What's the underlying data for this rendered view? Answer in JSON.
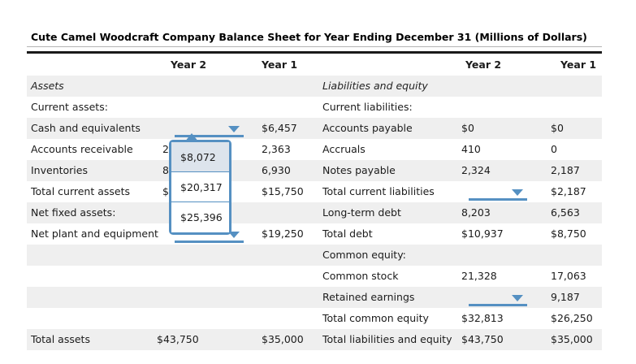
{
  "title": "Cute Camel Woodcraft Company Balance Sheet for Year Ending December 31 (Millions of Dollars)",
  "header": {
    "year2_left": "Year 2",
    "year1_left": "Year 1",
    "year2_right": "Year 2",
    "year1_right": "Year 1"
  },
  "rows": [
    {
      "left_label": "Assets",
      "left_y2": "",
      "left_y1": "",
      "right_label": "Liabilities and equity",
      "right_y2": "",
      "right_y1": ""
    },
    {
      "left_label": "Current assets:",
      "left_y2": "",
      "left_y1": "",
      "right_label": "Current liabilities:",
      "right_y2": "",
      "right_y1": ""
    },
    {
      "left_label": "Cash and equivalents",
      "left_y2": "",
      "left_y1": "$6,457",
      "right_label": "Accounts payable",
      "right_y2": "$0",
      "right_y1": "$0"
    },
    {
      "left_label": "Accounts receivable",
      "left_y2": "2",
      "left_y1": "2,363",
      "right_label": "Accruals",
      "right_y2": "410",
      "right_y1": "0"
    },
    {
      "left_label": "Inventories",
      "left_y2": "8",
      "left_y1": "6,930",
      "right_label": "Notes payable",
      "right_y2": "2,324",
      "right_y1": "2,187"
    },
    {
      "left_label": "Total current assets",
      "left_y2": "$",
      "left_y1": "$15,750",
      "right_label": "Total current liabilities",
      "right_y2": "",
      "right_y1": "$2,187"
    },
    {
      "left_label": "Net fixed assets:",
      "left_y2": "",
      "left_y1": "",
      "right_label": "Long-term debt",
      "right_y2": "8,203",
      "right_y1": "6,563"
    },
    {
      "left_label": "Net plant and equipment",
      "left_y2": "",
      "left_y1": "$19,250",
      "right_label": "Total debt",
      "right_y2": "$10,937",
      "right_y1": "$8,750"
    },
    {
      "left_label": "",
      "left_y2": "",
      "left_y1": "",
      "right_label": "Common equity:",
      "right_y2": "",
      "right_y1": ""
    },
    {
      "left_label": "",
      "left_y2": "",
      "left_y1": "",
      "right_label": "Common stock",
      "right_y2": "21,328",
      "right_y1": "17,063"
    },
    {
      "left_label": "",
      "left_y2": "",
      "left_y1": "",
      "right_label": "Retained earnings",
      "right_y2": "",
      "right_y1": "9,187"
    },
    {
      "left_label": "",
      "left_y2": "",
      "left_y1": "",
      "right_label": "Total common equity",
      "right_y2": "$32,813",
      "right_y1": "$26,250"
    },
    {
      "left_label": "Total assets",
      "left_y2": "$43,750",
      "left_y1": "$35,000",
      "right_label": "Total liabilities and equity",
      "right_y2": "$43,750",
      "right_y1": "$35,000"
    }
  ],
  "popup": {
    "options": [
      "$8,072",
      "$20,317",
      "$25,396"
    ],
    "highlighted_option": "$8,072"
  },
  "colors": {
    "accent_blue": "#5590c2",
    "row_stripe": "#efefef",
    "popup_selected_bg": "#dde4ec",
    "rule_black": "#1a1a1a"
  }
}
